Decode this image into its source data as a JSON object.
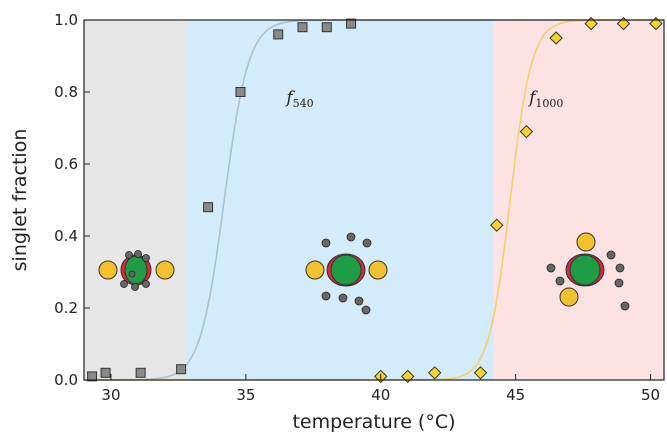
{
  "chart_data": {
    "type": "scatter",
    "xlabel": "temperature (°C)",
    "ylabel": "singlet fraction",
    "xlim": [
      29,
      50.5
    ],
    "ylim": [
      0,
      1.0
    ],
    "xticks": [
      30,
      35,
      40,
      45,
      50
    ],
    "xtick_labels": [
      "30",
      "35",
      "40",
      "45",
      "50"
    ],
    "yticks": [
      0.0,
      0.2,
      0.4,
      0.6,
      0.8,
      1.0
    ],
    "ytick_labels": [
      "0.0",
      "0.2",
      "0.4",
      "0.6",
      "0.8",
      "1.0"
    ],
    "regions": [
      {
        "x_start": 29,
        "x_end": 32.8,
        "color": "#e6e6e6"
      },
      {
        "x_start": 32.8,
        "x_end": 44.2,
        "color": "#d4ebf9"
      },
      {
        "x_start": 44.2,
        "x_end": 50.5,
        "color": "#fde2e4"
      }
    ],
    "series": [
      {
        "name": "f",
        "name_sub": "540",
        "label_pos": {
          "x": 36.5,
          "y": 0.77
        },
        "marker": "square",
        "color": "#8a8a8a",
        "fit_color": "#a9c3d2",
        "fit_midpoint": 34.2,
        "fit_width": 0.45,
        "x": [
          29.3,
          29.8,
          31.1,
          32.6,
          33.6,
          34.8,
          36.2,
          37.1,
          38.0,
          38.9
        ],
        "y": [
          0.01,
          0.02,
          0.02,
          0.03,
          0.48,
          0.8,
          0.96,
          0.98,
          0.98,
          0.99
        ]
      },
      {
        "name": "f",
        "name_sub": "1000",
        "label_pos": {
          "x": 45.5,
          "y": 0.77
        },
        "marker": "diamond",
        "color": "#f6d32b",
        "fit_color": "#f4cf6a",
        "fit_midpoint": 44.8,
        "fit_width": 0.4,
        "x": [
          40.0,
          41.0,
          42.0,
          43.7,
          44.3,
          45.4,
          46.5,
          47.8,
          49.0,
          50.2
        ],
        "y": [
          0.01,
          0.01,
          0.02,
          0.02,
          0.43,
          0.69,
          0.95,
          0.99,
          0.99,
          0.99
        ]
      }
    ]
  }
}
